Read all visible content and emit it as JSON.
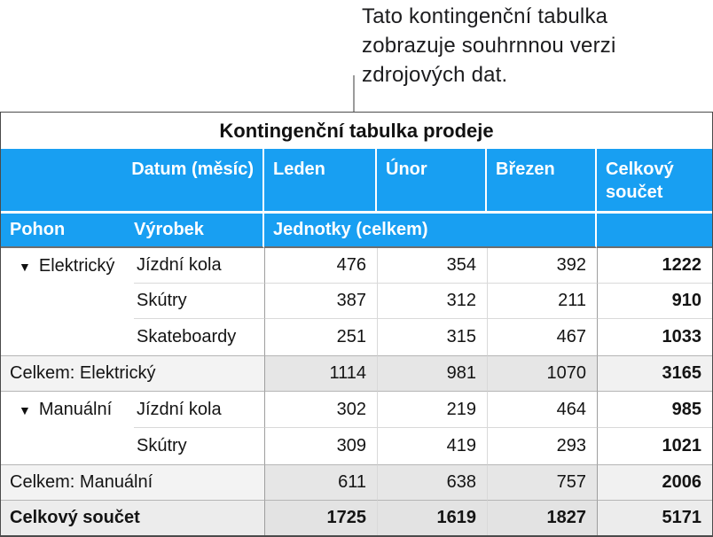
{
  "annotation": {
    "lines": [
      "Tato kontingenční tabulka",
      "zobrazuje souhrnnou verzi",
      "zdrojových dat."
    ]
  },
  "colors": {
    "header_blue": "#189ff2",
    "subtotal_label_bg": "#f3f3f3",
    "subtotal_value_bg": "#e6e6e6",
    "grand_total_bg": "#ececec",
    "callout_line": "#9b9b9b"
  },
  "pivot": {
    "title": "Kontingenční tabulka prodeje",
    "header_row1": {
      "datum": "Datum (měsíc)",
      "months": [
        "Leden",
        "Únor",
        "Březen"
      ],
      "total": "Celkový součet"
    },
    "header_row2": {
      "pohon": "Pohon",
      "vyrobek": "Výrobek",
      "jednotky": "Jednotky (celkem)"
    },
    "groups": [
      {
        "name": "Elektrický",
        "disclosure": "▼",
        "rows": [
          {
            "product": "Jízdní kola",
            "values": [
              "476",
              "354",
              "392"
            ],
            "total": "1222"
          },
          {
            "product": "Skútry",
            "values": [
              "387",
              "312",
              "211"
            ],
            "total": "910"
          },
          {
            "product": "Skateboardy",
            "values": [
              "251",
              "315",
              "467"
            ],
            "total": "1033"
          }
        ],
        "subtotal": {
          "label": "Celkem: Elektrický",
          "values": [
            "1114",
            "981",
            "1070"
          ],
          "total": "3165"
        }
      },
      {
        "name": "Manuální",
        "disclosure": "▼",
        "rows": [
          {
            "product": "Jízdní kola",
            "values": [
              "302",
              "219",
              "464"
            ],
            "total": "985"
          },
          {
            "product": "Skútry",
            "values": [
              "309",
              "419",
              "293"
            ],
            "total": "1021"
          }
        ],
        "subtotal": {
          "label": "Celkem: Manuální",
          "values": [
            "611",
            "638",
            "757"
          ],
          "total": "2006"
        }
      }
    ],
    "grand_total": {
      "label": "Celkový součet",
      "values": [
        "1725",
        "1619",
        "1827"
      ],
      "total": "5171"
    }
  }
}
